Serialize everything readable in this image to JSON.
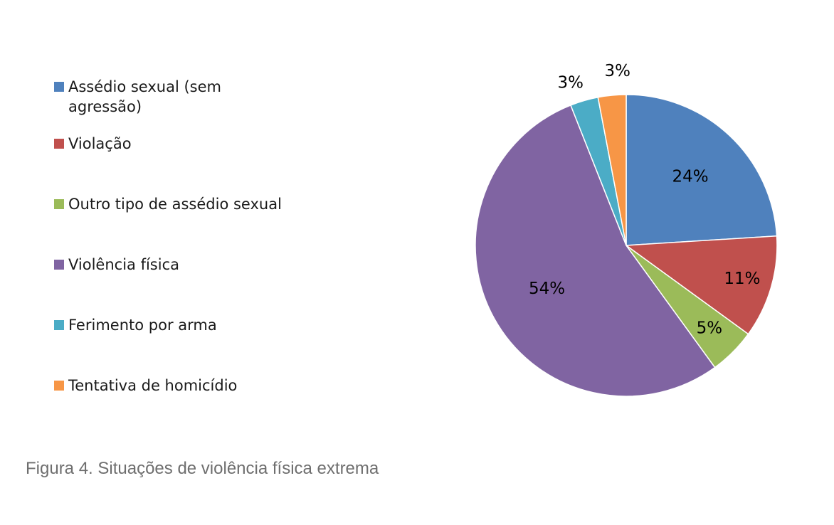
{
  "chart_data": {
    "type": "pie",
    "title": "",
    "slices": [
      {
        "label": "Assédio sexual (sem agressão)",
        "value": 24,
        "value_label": "24%",
        "color": "#4f81bd"
      },
      {
        "label": "Violação",
        "value": 11,
        "value_label": "11%",
        "color": "#c0504d"
      },
      {
        "label": "Outro tipo de assédio sexual",
        "value": 5,
        "value_label": "5%",
        "color": "#9bbb59"
      },
      {
        "label": "Violência física",
        "value": 54,
        "value_label": "54%",
        "color": "#8064a2"
      },
      {
        "label": "Ferimento por arma",
        "value": 3,
        "value_label": "3%",
        "color": "#4bacc6"
      },
      {
        "label": "Tentativa de homicídio",
        "value": 3,
        "value_label": "3%",
        "color": "#f79646"
      }
    ],
    "legend_position": "left"
  },
  "caption": "Figura 4. Situações de violência física extrema"
}
